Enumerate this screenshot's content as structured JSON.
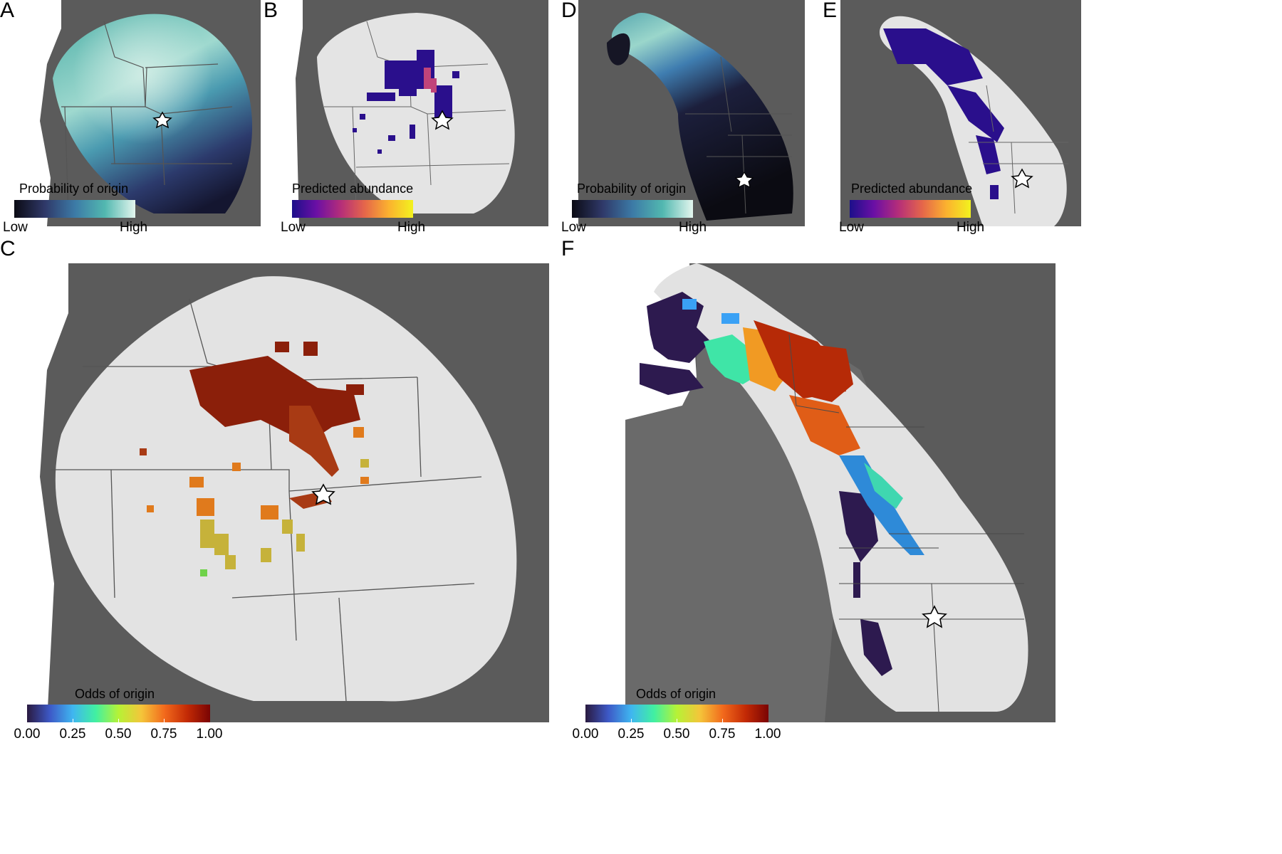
{
  "panels": {
    "A": {
      "letter": "A",
      "legend": {
        "title": "Probability of origin",
        "low": "Low",
        "high": "High",
        "colors": [
          "#0b0b14",
          "#2f3868",
          "#3c7aa6",
          "#52b8b0",
          "#e4f6ee"
        ]
      }
    },
    "B": {
      "letter": "B",
      "legend": {
        "title": "Predicted abundance",
        "low": "Low",
        "high": "High",
        "colors": [
          "#1c0f8a",
          "#6a0fa5",
          "#b42d7a",
          "#e5664a",
          "#fbb22f",
          "#f2f21e"
        ]
      }
    },
    "C": {
      "letter": "C",
      "legend": {
        "title": "Odds of origin",
        "ticks": [
          "0.00",
          "0.25",
          "0.50",
          "0.75",
          "1.00"
        ],
        "colors": [
          "#2a1a40",
          "#3d59c7",
          "#3fb6f0",
          "#41f0a2",
          "#b6f236",
          "#f4c53a",
          "#f26a1c",
          "#c32a05",
          "#7a0403"
        ]
      }
    },
    "D": {
      "letter": "D",
      "legend": {
        "title": "Probability of origin",
        "low": "Low",
        "high": "High",
        "colors": [
          "#0b0b14",
          "#2f3868",
          "#3c7aa6",
          "#52b8b0",
          "#e4f6ee"
        ]
      }
    },
    "E": {
      "letter": "E",
      "legend": {
        "title": "Predicted abundance",
        "low": "Low",
        "high": "High",
        "colors": [
          "#1c0f8a",
          "#6a0fa5",
          "#b42d7a",
          "#e5664a",
          "#fbb22f",
          "#f2f21e"
        ]
      }
    },
    "F": {
      "letter": "F",
      "legend": {
        "title": "Odds of origin",
        "ticks": [
          "0.00",
          "0.25",
          "0.50",
          "0.75",
          "1.00"
        ],
        "colors": [
          "#2a1a40",
          "#3d59c7",
          "#3fb6f0",
          "#41f0a2",
          "#b6f236",
          "#f4c53a",
          "#f26a1c",
          "#c32a05",
          "#7a0403"
        ]
      }
    }
  },
  "colors": {
    "background_land": "#5e5e5e",
    "region_fill": "#e2e2e2",
    "borders": "#444444",
    "star": "#ffffff"
  }
}
